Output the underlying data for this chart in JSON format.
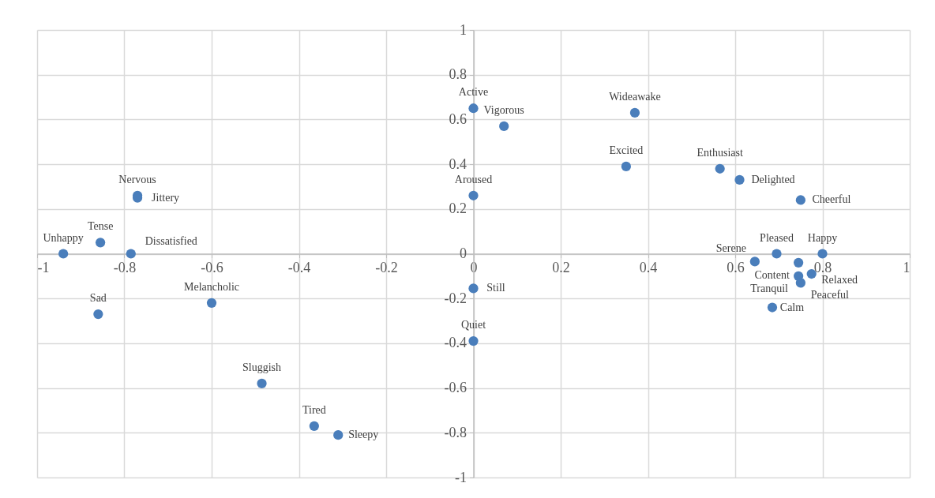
{
  "chart_data": {
    "type": "scatter",
    "marker": "circle",
    "grid": true,
    "legend": false,
    "xlim": [
      -1,
      1
    ],
    "ylim": [
      -1,
      1
    ],
    "xticks": [
      -1,
      -0.8,
      -0.6,
      -0.4,
      -0.2,
      0,
      0.2,
      0.4,
      0.6,
      0.8,
      1
    ],
    "yticks": [
      -1,
      -0.8,
      -0.6,
      -0.4,
      -0.2,
      0,
      0.2,
      0.4,
      0.6,
      0.8,
      1
    ],
    "x": [
      0,
      0.07,
      0.37,
      0.35,
      0.565,
      0.61,
      0.75,
      0,
      -0.77,
      -0.77,
      -0.855,
      -0.94,
      -0.785,
      -0.86,
      -0.6,
      -0.485,
      -0.365,
      -0.31,
      0,
      0,
      0.685,
      0.645,
      0.695,
      0.745,
      0.745,
      0.75,
      0.775,
      0.8
    ],
    "series": [
      {
        "color": "#4a7ebb",
        "values": [
          0.65,
          0.57,
          0.63,
          0.39,
          0.38,
          0.33,
          0.24,
          0.26,
          0.26,
          0.25,
          0.05,
          0,
          0,
          -0.27,
          -0.22,
          -0.58,
          -0.77,
          -0.81,
          -0.155,
          -0.39,
          -0.24,
          -0.035,
          0,
          -0.04,
          -0.1,
          -0.13,
          -0.09,
          0
        ]
      }
    ],
    "annotations": [
      {
        "text": "Active",
        "x": 0,
        "y": 0.65
      },
      {
        "text": "Vigorous",
        "x": 0.07,
        "y": 0.57
      },
      {
        "text": "Wideawake",
        "x": 0.37,
        "y": 0.63
      },
      {
        "text": "Excited",
        "x": 0.35,
        "y": 0.39
      },
      {
        "text": "Enthusiast",
        "x": 0.565,
        "y": 0.38
      },
      {
        "text": "Delighted",
        "x": 0.61,
        "y": 0.33
      },
      {
        "text": "Cheerful",
        "x": 0.75,
        "y": 0.24
      },
      {
        "text": "Aroused",
        "x": 0,
        "y": 0.26
      },
      {
        "text": "Nervous",
        "x": -0.77,
        "y": 0.26
      },
      {
        "text": "Jittery",
        "x": -0.77,
        "y": 0.25
      },
      {
        "text": "Tense",
        "x": -0.855,
        "y": 0.05
      },
      {
        "text": "Unhappy",
        "x": -0.94,
        "y": 0
      },
      {
        "text": "Dissatisfied",
        "x": -0.785,
        "y": 0
      },
      {
        "text": "Sad",
        "x": -0.86,
        "y": -0.27
      },
      {
        "text": "Melancholic",
        "x": -0.6,
        "y": -0.22
      },
      {
        "text": "Sluggish",
        "x": -0.485,
        "y": -0.58
      },
      {
        "text": "Tired",
        "x": -0.365,
        "y": -0.77
      },
      {
        "text": "Sleepy",
        "x": -0.31,
        "y": -0.81
      },
      {
        "text": "Still",
        "x": 0,
        "y": -0.155
      },
      {
        "text": "Quiet",
        "x": 0,
        "y": -0.39
      },
      {
        "text": "Calm",
        "x": 0.685,
        "y": -0.24
      },
      {
        "text": "Serene",
        "x": 0.645,
        "y": -0.035
      },
      {
        "text": "Pleased",
        "x": 0.695,
        "y": 0
      },
      {
        "text": "Content",
        "x": 0.745,
        "y": -0.04
      },
      {
        "text": "Tranquil",
        "x": 0.745,
        "y": -0.1
      },
      {
        "text": "Peaceful",
        "x": 0.75,
        "y": -0.13
      },
      {
        "text": "Relaxed",
        "x": 0.775,
        "y": -0.09
      },
      {
        "text": "Happy",
        "x": 0.8,
        "y": 0
      }
    ]
  }
}
